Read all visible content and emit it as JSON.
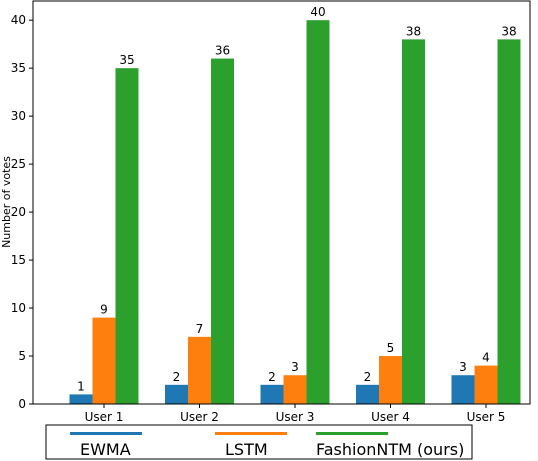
{
  "chart_data": {
    "type": "bar",
    "title": "",
    "xlabel": "",
    "ylabel": "Number of votes",
    "ylim": [
      0,
      42
    ],
    "yticks": [
      0,
      5,
      10,
      15,
      20,
      25,
      30,
      35,
      40
    ],
    "grid": false,
    "legend_position": "bottom",
    "categories": [
      "User 1",
      "User 2",
      "User 3",
      "User 4",
      "User 5"
    ],
    "series": [
      {
        "name": "EWMA",
        "color": "#1f77b4",
        "values": [
          1,
          2,
          2,
          2,
          3
        ]
      },
      {
        "name": "LSTM",
        "color": "#ff7f0e",
        "values": [
          9,
          7,
          3,
          5,
          4
        ]
      },
      {
        "name": "FashionNTM (ours)",
        "color": "#2ca02c",
        "values": [
          35,
          36,
          40,
          38,
          38
        ]
      }
    ]
  }
}
